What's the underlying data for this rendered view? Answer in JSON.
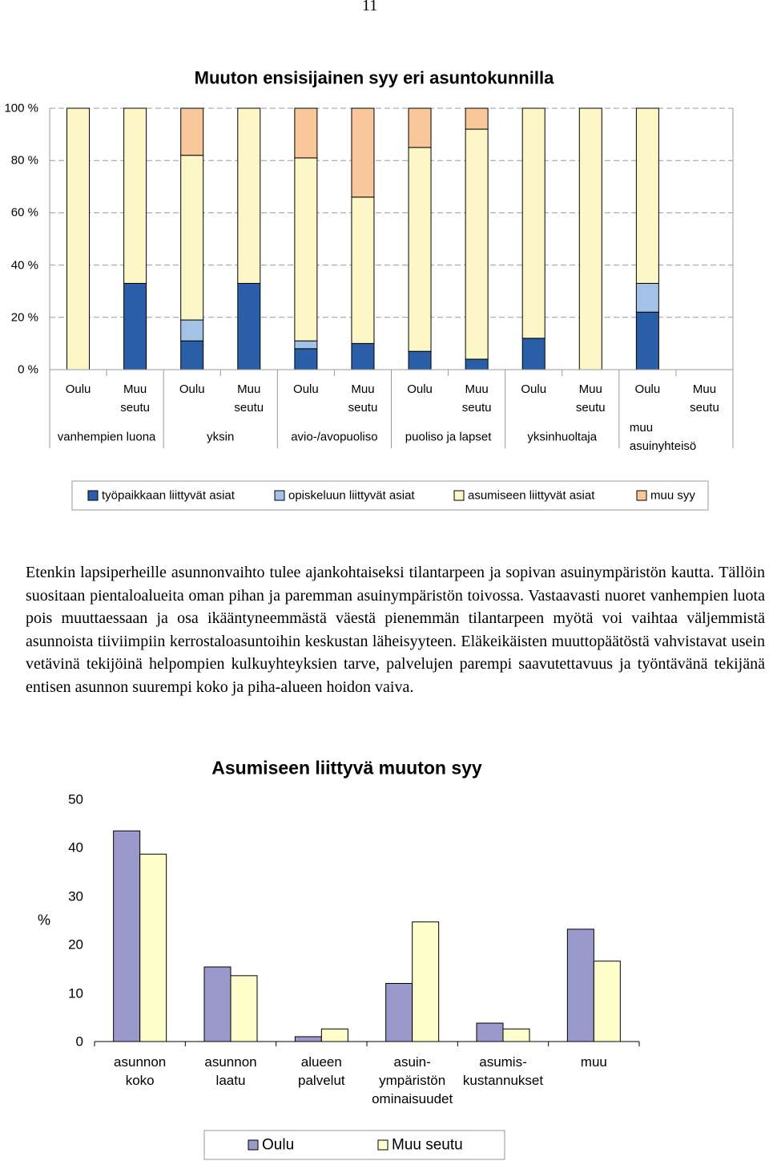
{
  "page_number": "11",
  "paragraph": "Etenkin lapsiperheille asunnonvaihto tulee ajankohtaiseksi tilantarpeen ja sopivan asuinympäristön kautta. Tällöin suositaan pientaloalueita oman pihan ja paremman asuinympäristön toivossa. Vastaavasti nuoret vanhempien luota pois muuttaessaan ja osa ikääntyneemmästä väestä pienemmän tilantarpeen myötä voi vaihtaa väljemmistä asunnoista tiiviimpiin kerrostaloasuntoihin keskustan läheisyyteen. Eläkeikäisten muuttopäätöstä vahvistavat usein vetävinä tekijöinä helpompien kulkuyhteyksien tarve, palvelujen parempi saavutettavuus ja työntävänä tekijänä entisen asunnon suurempi koko ja piha-alueen hoidon vaiva.",
  "chart_data": [
    {
      "type": "stacked_bar",
      "title": "Muuton ensisijainen syy eri asuntokunnilla",
      "categories": [
        "Oulu",
        "Muu\nseutu",
        "Oulu",
        "Muu\nseutu",
        "Oulu",
        "Muu\nseutu",
        "Oulu",
        "Muu\nseutu",
        "Oulu",
        "Muu\nseutu",
        "Oulu",
        "Muu\nseutu"
      ],
      "groups": [
        "vanhempien luona",
        "yksin",
        "avio-/avopuoliso",
        "puoliso ja lapset",
        "yksinhuoltaja",
        "muu asuinyhteisö"
      ],
      "series": [
        {
          "name": "työpaikkaan liittyvät asiat",
          "color": "#2a5fa8",
          "values": [
            0,
            33,
            11,
            33,
            8,
            10,
            7,
            4,
            12,
            0,
            22,
            null
          ]
        },
        {
          "name": "opiskeluun liittyvät asiat",
          "color": "#a4c2e8",
          "values": [
            0,
            0,
            8,
            0,
            3,
            0,
            0,
            0,
            0,
            0,
            11,
            null
          ]
        },
        {
          "name": "asumiseen liittyvät asiat",
          "color": "#fdf7c8",
          "values": [
            100,
            67,
            63,
            67,
            70,
            56,
            78,
            88,
            88,
            100,
            67,
            null
          ]
        },
        {
          "name": "muu syy",
          "color": "#f8c89a",
          "values": [
            0,
            0,
            18,
            0,
            19,
            34,
            15,
            8,
            0,
            0,
            0,
            null
          ]
        }
      ],
      "ylim": [
        0,
        100
      ],
      "yticks": [
        {
          "value": 0,
          "label": "0 %"
        },
        {
          "value": 20,
          "label": "20 %"
        },
        {
          "value": 40,
          "label": "40 %"
        },
        {
          "value": 60,
          "label": "60 %"
        },
        {
          "value": 80,
          "label": "80 %"
        },
        {
          "value": 100,
          "label": "100 %"
        }
      ],
      "grid": true,
      "legend": "bottom"
    },
    {
      "type": "bar",
      "title": "Asumiseen liittyvä muuton syy",
      "y_label": "%",
      "categories": [
        "asunnon\nkoko",
        "asunnon\nlaatu",
        "alueen\npalvelut",
        "asuin-\nympäristön\nominaisuudet",
        "asumis-\nkustannukset",
        "muu"
      ],
      "series": [
        {
          "name": "Oulu",
          "color": "#9999cc",
          "values": [
            43.5,
            15.4,
            1,
            12,
            3.8,
            23.2
          ]
        },
        {
          "name": "Muu seutu",
          "color": "#ffffcc",
          "values": [
            38.7,
            13.6,
            2.6,
            24.7,
            2.6,
            16.6
          ]
        }
      ],
      "ylim": [
        0,
        50
      ],
      "yticks": [
        0,
        10,
        20,
        30,
        40,
        50
      ],
      "grid": false,
      "legend": "bottom"
    }
  ]
}
